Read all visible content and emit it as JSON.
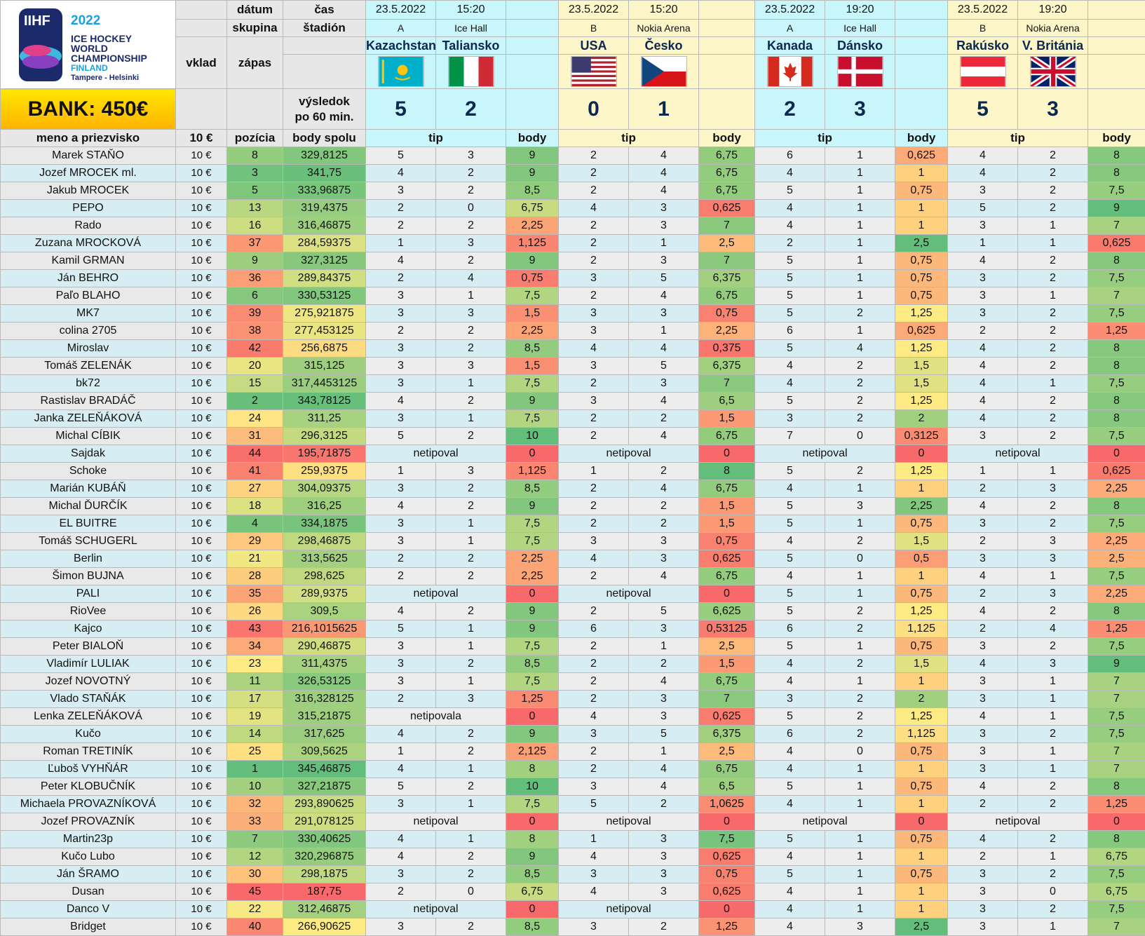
{
  "logo": {
    "iihf": "IIHF",
    "year": "2022",
    "line1": "ICE HOCKEY",
    "line2": "WORLD",
    "line3": "CHAMPIONSHIP",
    "country": "FINLAND",
    "cities": "Tampere - Helsinki"
  },
  "bank": "BANK: 450€",
  "headers": {
    "datum": "dátum",
    "cas": "čas",
    "skupina": "skupina",
    "stadion": "štadión",
    "vklad": "vklad",
    "zapas": "zápas",
    "vysledok1": "výsledok",
    "vysledok2": "po 60 min.",
    "meno": "meno a priezvisko",
    "vklad_val": "10 €",
    "pozicia": "pozícia",
    "body_spolu": "body spolu",
    "tip": "tip",
    "body": "body"
  },
  "colors": {
    "cyan": "#c8f6fb",
    "yellow": "#fcf6c9",
    "green": "#63be7b",
    "yellow_mid": "#ffeb84",
    "red": "#f8696b"
  },
  "matches": [
    {
      "date": "23.5.2022",
      "time": "15:20",
      "group": "A",
      "stadium": "Ice Hall",
      "home": "Kazachstan",
      "away": "Taliansko",
      "home_flag": "kazakhstan-flag",
      "away_flag": "italy-flag",
      "home_score": "5",
      "away_score": "2",
      "theme": "cy"
    },
    {
      "date": "23.5.2022",
      "time": "15:20",
      "group": "B",
      "stadium": "Nokia Arena",
      "home": "USA",
      "away": "Česko",
      "home_flag": "usa-flag",
      "away_flag": "czech-flag",
      "home_score": "0",
      "away_score": "1",
      "theme": "yl"
    },
    {
      "date": "23.5.2022",
      "time": "19:20",
      "group": "A",
      "stadium": "Ice Hall",
      "home": "Kanada",
      "away": "Dánsko",
      "home_flag": "canada-flag",
      "away_flag": "denmark-flag",
      "home_score": "2",
      "away_score": "3",
      "theme": "cy"
    },
    {
      "date": "23.5.2022",
      "time": "19:20",
      "group": "B",
      "stadium": "Nokia Arena",
      "home": "Rakúsko",
      "away": "V. Británia",
      "home_flag": "austria-flag",
      "away_flag": "uk-flag",
      "home_score": "5",
      "away_score": "3",
      "theme": "yl"
    }
  ],
  "players": [
    {
      "name": "Marek STAŇO",
      "vklad": "10 €",
      "pos": "8",
      "total": "329,8125",
      "m": [
        [
          "5",
          "3",
          "9"
        ],
        [
          "2",
          "4",
          "6,75"
        ],
        [
          "6",
          "1",
          "0,625"
        ],
        [
          "4",
          "2",
          "8"
        ]
      ]
    },
    {
      "name": "Jozef MROCEK ml.",
      "vklad": "10 €",
      "pos": "3",
      "total": "341,75",
      "m": [
        [
          "4",
          "2",
          "9"
        ],
        [
          "2",
          "4",
          "6,75"
        ],
        [
          "4",
          "1",
          "1"
        ],
        [
          "4",
          "2",
          "8"
        ]
      ]
    },
    {
      "name": "Jakub MROCEK",
      "vklad": "10 €",
      "pos": "5",
      "total": "333,96875",
      "m": [
        [
          "3",
          "2",
          "8,5"
        ],
        [
          "2",
          "4",
          "6,75"
        ],
        [
          "5",
          "1",
          "0,75"
        ],
        [
          "3",
          "2",
          "7,5"
        ]
      ]
    },
    {
      "name": "PEPO",
      "vklad": "10 €",
      "pos": "13",
      "total": "319,4375",
      "m": [
        [
          "2",
          "0",
          "6,75"
        ],
        [
          "4",
          "3",
          "0,625"
        ],
        [
          "4",
          "1",
          "1"
        ],
        [
          "5",
          "2",
          "9"
        ]
      ]
    },
    {
      "name": "Rado",
      "vklad": "10 €",
      "pos": "16",
      "total": "316,46875",
      "m": [
        [
          "2",
          "2",
          "2,25"
        ],
        [
          "2",
          "3",
          "7"
        ],
        [
          "4",
          "1",
          "1"
        ],
        [
          "3",
          "1",
          "7"
        ]
      ]
    },
    {
      "name": "Zuzana MROCKOVÁ",
      "vklad": "10 €",
      "pos": "37",
      "total": "284,59375",
      "m": [
        [
          "1",
          "3",
          "1,125"
        ],
        [
          "2",
          "1",
          "2,5"
        ],
        [
          "2",
          "1",
          "2,5"
        ],
        [
          "1",
          "1",
          "0,625"
        ]
      ]
    },
    {
      "name": "Kamil GRMAN",
      "vklad": "10 €",
      "pos": "9",
      "total": "327,3125",
      "m": [
        [
          "4",
          "2",
          "9"
        ],
        [
          "2",
          "3",
          "7"
        ],
        [
          "5",
          "1",
          "0,75"
        ],
        [
          "4",
          "2",
          "8"
        ]
      ]
    },
    {
      "name": "Ján BEHRO",
      "vklad": "10 €",
      "pos": "36",
      "total": "289,84375",
      "m": [
        [
          "2",
          "4",
          "0,75"
        ],
        [
          "3",
          "5",
          "6,375"
        ],
        [
          "5",
          "1",
          "0,75"
        ],
        [
          "3",
          "2",
          "7,5"
        ]
      ]
    },
    {
      "name": "Paľo BLAHO",
      "vklad": "10 €",
      "pos": "6",
      "total": "330,53125",
      "m": [
        [
          "3",
          "1",
          "7,5"
        ],
        [
          "2",
          "4",
          "6,75"
        ],
        [
          "5",
          "1",
          "0,75"
        ],
        [
          "3",
          "1",
          "7"
        ]
      ]
    },
    {
      "name": "MK7",
      "vklad": "10 €",
      "pos": "39",
      "total": "275,921875",
      "m": [
        [
          "3",
          "3",
          "1,5"
        ],
        [
          "3",
          "3",
          "0,75"
        ],
        [
          "5",
          "2",
          "1,25"
        ],
        [
          "3",
          "2",
          "7,5"
        ]
      ]
    },
    {
      "name": "colina 2705",
      "vklad": "10 €",
      "pos": "38",
      "total": "277,453125",
      "m": [
        [
          "2",
          "2",
          "2,25"
        ],
        [
          "3",
          "1",
          "2,25"
        ],
        [
          "6",
          "1",
          "0,625"
        ],
        [
          "2",
          "2",
          "1,25"
        ]
      ]
    },
    {
      "name": "Miroslav",
      "vklad": "10 €",
      "pos": "42",
      "total": "256,6875",
      "m": [
        [
          "3",
          "2",
          "8,5"
        ],
        [
          "4",
          "4",
          "0,375"
        ],
        [
          "5",
          "4",
          "1,25"
        ],
        [
          "4",
          "2",
          "8"
        ]
      ]
    },
    {
      "name": "Tomáš ZELENÁK",
      "vklad": "10 €",
      "pos": "20",
      "total": "315,125",
      "m": [
        [
          "3",
          "3",
          "1,5"
        ],
        [
          "3",
          "5",
          "6,375"
        ],
        [
          "4",
          "2",
          "1,5"
        ],
        [
          "4",
          "2",
          "8"
        ]
      ]
    },
    {
      "name": "bk72",
      "vklad": "10 €",
      "pos": "15",
      "total": "317,4453125",
      "m": [
        [
          "3",
          "1",
          "7,5"
        ],
        [
          "2",
          "3",
          "7"
        ],
        [
          "4",
          "2",
          "1,5"
        ],
        [
          "4",
          "1",
          "7,5"
        ]
      ]
    },
    {
      "name": "Rastislav BRADÁČ",
      "vklad": "10 €",
      "pos": "2",
      "total": "343,78125",
      "m": [
        [
          "4",
          "2",
          "9"
        ],
        [
          "3",
          "4",
          "6,5"
        ],
        [
          "5",
          "2",
          "1,25"
        ],
        [
          "4",
          "2",
          "8"
        ]
      ]
    },
    {
      "name": "Janka ZELEŇÁKOVÁ",
      "vklad": "10 €",
      "pos": "24",
      "total": "311,25",
      "m": [
        [
          "3",
          "1",
          "7,5"
        ],
        [
          "2",
          "2",
          "1,5"
        ],
        [
          "3",
          "2",
          "2"
        ],
        [
          "4",
          "2",
          "8"
        ]
      ]
    },
    {
      "name": "Michal CÍBIK",
      "vklad": "10 €",
      "pos": "31",
      "total": "296,3125",
      "m": [
        [
          "5",
          "2",
          "10"
        ],
        [
          "2",
          "4",
          "6,75"
        ],
        [
          "7",
          "0",
          "0,3125"
        ],
        [
          "3",
          "2",
          "7,5"
        ]
      ]
    },
    {
      "name": "Sajdak",
      "vklad": "10 €",
      "pos": "44",
      "total": "195,71875",
      "m": [
        [
          "netipoval",
          "",
          "0"
        ],
        [
          "netipoval",
          "",
          "0"
        ],
        [
          "netipoval",
          "",
          "0"
        ],
        [
          "netipoval",
          "",
          "0"
        ]
      ]
    },
    {
      "name": "Schoke",
      "vklad": "10 €",
      "pos": "41",
      "total": "259,9375",
      "m": [
        [
          "1",
          "3",
          "1,125"
        ],
        [
          "1",
          "2",
          "8"
        ],
        [
          "5",
          "2",
          "1,25"
        ],
        [
          "1",
          "1",
          "0,625"
        ]
      ]
    },
    {
      "name": "Marián KUBÁŇ",
      "vklad": "10 €",
      "pos": "27",
      "total": "304,09375",
      "m": [
        [
          "3",
          "2",
          "8,5"
        ],
        [
          "2",
          "4",
          "6,75"
        ],
        [
          "4",
          "1",
          "1"
        ],
        [
          "2",
          "3",
          "2,25"
        ]
      ]
    },
    {
      "name": "Michal ĎURČÍK",
      "vklad": "10 €",
      "pos": "18",
      "total": "316,25",
      "m": [
        [
          "4",
          "2",
          "9"
        ],
        [
          "2",
          "2",
          "1,5"
        ],
        [
          "5",
          "3",
          "2,25"
        ],
        [
          "4",
          "2",
          "8"
        ]
      ]
    },
    {
      "name": "EL BUITRE",
      "vklad": "10 €",
      "pos": "4",
      "total": "334,1875",
      "m": [
        [
          "3",
          "1",
          "7,5"
        ],
        [
          "2",
          "2",
          "1,5"
        ],
        [
          "5",
          "1",
          "0,75"
        ],
        [
          "3",
          "2",
          "7,5"
        ]
      ]
    },
    {
      "name": "Tomáš SCHUGERL",
      "vklad": "10 €",
      "pos": "29",
      "total": "298,46875",
      "m": [
        [
          "3",
          "1",
          "7,5"
        ],
        [
          "3",
          "3",
          "0,75"
        ],
        [
          "4",
          "2",
          "1,5"
        ],
        [
          "2",
          "3",
          "2,25"
        ]
      ]
    },
    {
      "name": "Berlin",
      "vklad": "10 €",
      "pos": "21",
      "total": "313,5625",
      "m": [
        [
          "2",
          "2",
          "2,25"
        ],
        [
          "4",
          "3",
          "0,625"
        ],
        [
          "5",
          "0",
          "0,5"
        ],
        [
          "3",
          "3",
          "2,5"
        ]
      ]
    },
    {
      "name": "Šimon BUJNA",
      "vklad": "10 €",
      "pos": "28",
      "total": "298,625",
      "m": [
        [
          "2",
          "2",
          "2,25"
        ],
        [
          "2",
          "4",
          "6,75"
        ],
        [
          "4",
          "1",
          "1"
        ],
        [
          "4",
          "1",
          "7,5"
        ]
      ]
    },
    {
      "name": "PALI",
      "vklad": "10 €",
      "pos": "35",
      "total": "289,9375",
      "m": [
        [
          "netipoval",
          "",
          "0"
        ],
        [
          "netipoval",
          "",
          "0"
        ],
        [
          "5",
          "1",
          "0,75"
        ],
        [
          "2",
          "3",
          "2,25"
        ]
      ]
    },
    {
      "name": "RioVee",
      "vklad": "10 €",
      "pos": "26",
      "total": "309,5",
      "m": [
        [
          "4",
          "2",
          "9"
        ],
        [
          "2",
          "5",
          "6,625"
        ],
        [
          "5",
          "2",
          "1,25"
        ],
        [
          "4",
          "2",
          "8"
        ]
      ]
    },
    {
      "name": "Kajco",
      "vklad": "10 €",
      "pos": "43",
      "total": "216,1015625",
      "m": [
        [
          "5",
          "1",
          "9"
        ],
        [
          "6",
          "3",
          "0,53125"
        ],
        [
          "6",
          "2",
          "1,125"
        ],
        [
          "2",
          "4",
          "1,25"
        ]
      ]
    },
    {
      "name": "Peter BIALOŇ",
      "vklad": "10 €",
      "pos": "34",
      "total": "290,46875",
      "m": [
        [
          "3",
          "1",
          "7,5"
        ],
        [
          "2",
          "1",
          "2,5"
        ],
        [
          "5",
          "1",
          "0,75"
        ],
        [
          "3",
          "2",
          "7,5"
        ]
      ]
    },
    {
      "name": "Vladimír LULIAK",
      "vklad": "10 €",
      "pos": "23",
      "total": "311,4375",
      "m": [
        [
          "3",
          "2",
          "8,5"
        ],
        [
          "2",
          "2",
          "1,5"
        ],
        [
          "4",
          "2",
          "1,5"
        ],
        [
          "4",
          "3",
          "9"
        ]
      ]
    },
    {
      "name": "Jozef NOVOTNÝ",
      "vklad": "10 €",
      "pos": "11",
      "total": "326,53125",
      "m": [
        [
          "3",
          "1",
          "7,5"
        ],
        [
          "2",
          "4",
          "6,75"
        ],
        [
          "4",
          "1",
          "1"
        ],
        [
          "3",
          "1",
          "7"
        ]
      ]
    },
    {
      "name": "Vlado STAŇÁK",
      "vklad": "10 €",
      "pos": "17",
      "total": "316,328125",
      "m": [
        [
          "2",
          "3",
          "1,25"
        ],
        [
          "2",
          "3",
          "7"
        ],
        [
          "3",
          "2",
          "2"
        ],
        [
          "3",
          "1",
          "7"
        ]
      ]
    },
    {
      "name": "Lenka ZELEŇÁKOVÁ",
      "vklad": "10 €",
      "pos": "19",
      "total": "315,21875",
      "m": [
        [
          "netipovala",
          "",
          "0"
        ],
        [
          "4",
          "3",
          "0,625"
        ],
        [
          "5",
          "2",
          "1,25"
        ],
        [
          "4",
          "1",
          "7,5"
        ]
      ]
    },
    {
      "name": "Kučo",
      "vklad": "10 €",
      "pos": "14",
      "total": "317,625",
      "m": [
        [
          "4",
          "2",
          "9"
        ],
        [
          "3",
          "5",
          "6,375"
        ],
        [
          "6",
          "2",
          "1,125"
        ],
        [
          "3",
          "2",
          "7,5"
        ]
      ]
    },
    {
      "name": "Roman TRETINÍK",
      "vklad": "10 €",
      "pos": "25",
      "total": "309,5625",
      "m": [
        [
          "1",
          "2",
          "2,125"
        ],
        [
          "2",
          "1",
          "2,5"
        ],
        [
          "4",
          "0",
          "0,75"
        ],
        [
          "3",
          "1",
          "7"
        ]
      ]
    },
    {
      "name": "Ľuboš VYHŇÁR",
      "vklad": "10 €",
      "pos": "1",
      "total": "345,46875",
      "m": [
        [
          "4",
          "1",
          "8"
        ],
        [
          "2",
          "4",
          "6,75"
        ],
        [
          "4",
          "1",
          "1"
        ],
        [
          "3",
          "1",
          "7"
        ]
      ]
    },
    {
      "name": "Peter KLOBUČNÍK",
      "vklad": "10 €",
      "pos": "10",
      "total": "327,21875",
      "m": [
        [
          "5",
          "2",
          "10"
        ],
        [
          "3",
          "4",
          "6,5"
        ],
        [
          "5",
          "1",
          "0,75"
        ],
        [
          "4",
          "2",
          "8"
        ]
      ]
    },
    {
      "name": "Michaela PROVAZNÍKOVÁ",
      "vklad": "10 €",
      "pos": "32",
      "total": "293,890625",
      "m": [
        [
          "3",
          "1",
          "7,5"
        ],
        [
          "5",
          "2",
          "1,0625"
        ],
        [
          "4",
          "1",
          "1"
        ],
        [
          "2",
          "2",
          "1,25"
        ]
      ]
    },
    {
      "name": "Jozef PROVAZNÍK",
      "vklad": "10 €",
      "pos": "33",
      "total": "291,078125",
      "m": [
        [
          "netipoval",
          "",
          "0"
        ],
        [
          "netipoval",
          "",
          "0"
        ],
        [
          "netipoval",
          "",
          "0"
        ],
        [
          "netipoval",
          "",
          "0"
        ]
      ]
    },
    {
      "name": "Martin23p",
      "vklad": "10 €",
      "pos": "7",
      "total": "330,40625",
      "m": [
        [
          "4",
          "1",
          "8"
        ],
        [
          "1",
          "3",
          "7,5"
        ],
        [
          "5",
          "1",
          "0,75"
        ],
        [
          "4",
          "2",
          "8"
        ]
      ]
    },
    {
      "name": "Kučo Lubo",
      "vklad": "10 €",
      "pos": "12",
      "total": "320,296875",
      "m": [
        [
          "4",
          "2",
          "9"
        ],
        [
          "4",
          "3",
          "0,625"
        ],
        [
          "4",
          "1",
          "1"
        ],
        [
          "2",
          "1",
          "6,75"
        ]
      ]
    },
    {
      "name": "Ján ŠRAMO",
      "vklad": "10 €",
      "pos": "30",
      "total": "298,1875",
      "m": [
        [
          "3",
          "2",
          "8,5"
        ],
        [
          "3",
          "3",
          "0,75"
        ],
        [
          "5",
          "1",
          "0,75"
        ],
        [
          "3",
          "2",
          "7,5"
        ]
      ]
    },
    {
      "name": "Dusan",
      "vklad": "10 €",
      "pos": "45",
      "total": "187,75",
      "m": [
        [
          "2",
          "0",
          "6,75"
        ],
        [
          "4",
          "3",
          "0,625"
        ],
        [
          "4",
          "1",
          "1"
        ],
        [
          "3",
          "0",
          "6,75"
        ]
      ]
    },
    {
      "name": "Danco V",
      "vklad": "10 €",
      "pos": "22",
      "total": "312,46875",
      "m": [
        [
          "netipoval",
          "",
          "0"
        ],
        [
          "netipoval",
          "",
          "0"
        ],
        [
          "4",
          "1",
          "1"
        ],
        [
          "3",
          "2",
          "7,5"
        ]
      ]
    },
    {
      "name": "Bridget",
      "vklad": "10 €",
      "pos": "40",
      "total": "266,90625",
      "m": [
        [
          "3",
          "2",
          "8,5"
        ],
        [
          "3",
          "2",
          "1,25"
        ],
        [
          "4",
          "3",
          "2,5"
        ],
        [
          "3",
          "1",
          "7"
        ]
      ]
    }
  ]
}
